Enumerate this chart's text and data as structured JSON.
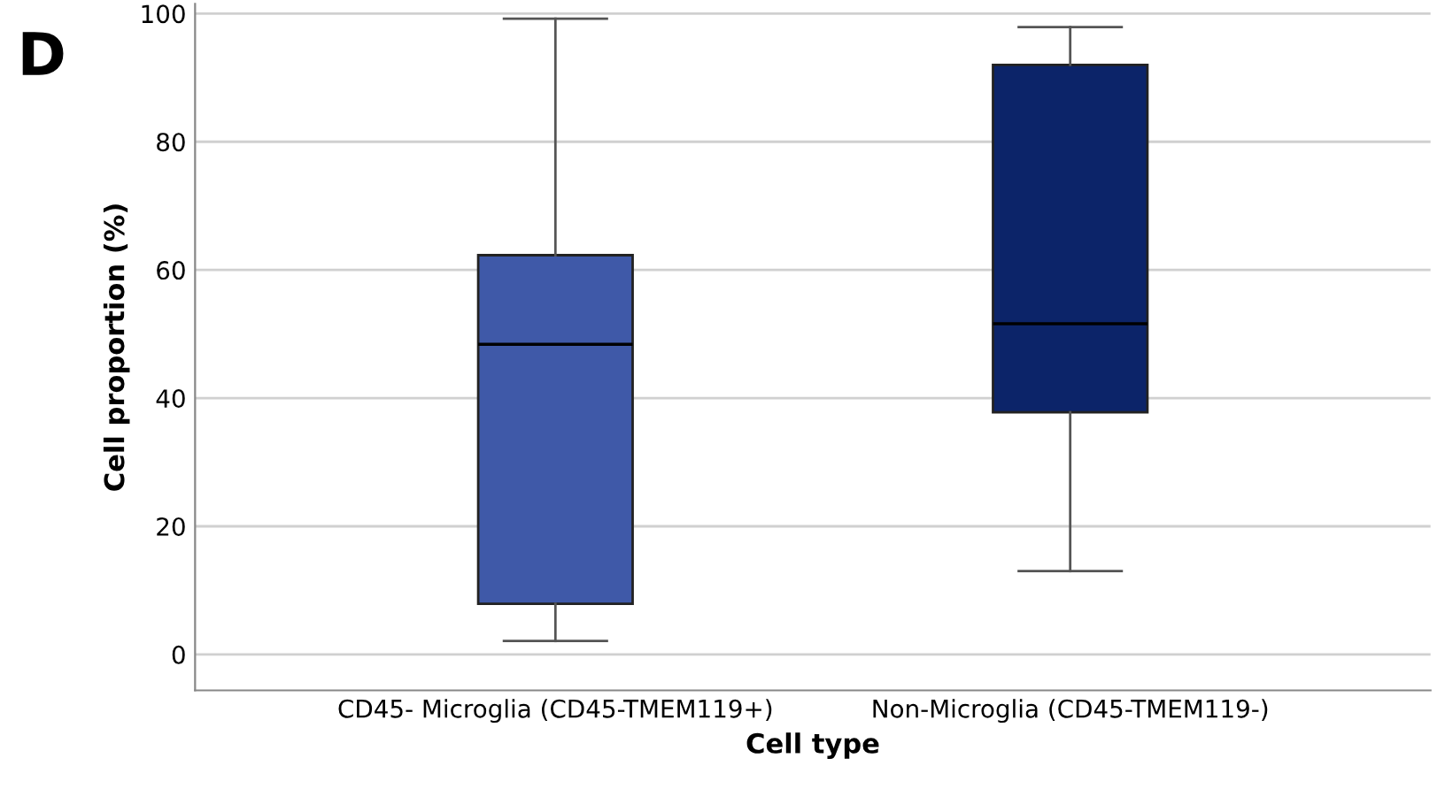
{
  "chart_data": {
    "type": "box",
    "xlabel": "Cell type",
    "ylabel": "Cell proportion (%)",
    "categories": [
      "CD45- Microglia (CD45-TMEM119+)",
      "Non-Microglia (CD45-TMEM119-)"
    ],
    "colors": [
      "#3f59a8",
      "#0c2469"
    ],
    "boxes": [
      {
        "low": 2.1,
        "q1": 7.9,
        "median": 48.4,
        "q3": 62.3,
        "high": 99.2
      },
      {
        "low": 13,
        "q1": 37.8,
        "median": 51.6,
        "q3": 92.0,
        "high": 97.9
      }
    ],
    "ylim": [
      -5.6,
      101.5
    ],
    "yticks": [
      0,
      20,
      40,
      60,
      80,
      100
    ],
    "grid": "y",
    "annotations": [
      "D"
    ]
  }
}
